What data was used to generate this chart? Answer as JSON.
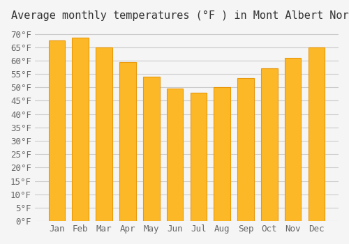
{
  "title": "Average monthly temperatures (°F ) in Mont Albert North",
  "months": [
    "Jan",
    "Feb",
    "Mar",
    "Apr",
    "May",
    "Jun",
    "Jul",
    "Aug",
    "Sep",
    "Oct",
    "Nov",
    "Dec"
  ],
  "values": [
    67.5,
    68.5,
    65.0,
    59.5,
    54.0,
    49.5,
    48.0,
    50.0,
    53.5,
    57.0,
    61.0,
    65.0
  ],
  "bar_color": "#FDB827",
  "bar_edge_color": "#E8980A",
  "background_color": "#F5F5F5",
  "grid_color": "#CCCCCC",
  "text_color": "#666666",
  "ylim": [
    0,
    72
  ],
  "yticks": [
    0,
    5,
    10,
    15,
    20,
    25,
    30,
    35,
    40,
    45,
    50,
    55,
    60,
    65,
    70
  ],
  "title_fontsize": 11,
  "tick_fontsize": 9
}
